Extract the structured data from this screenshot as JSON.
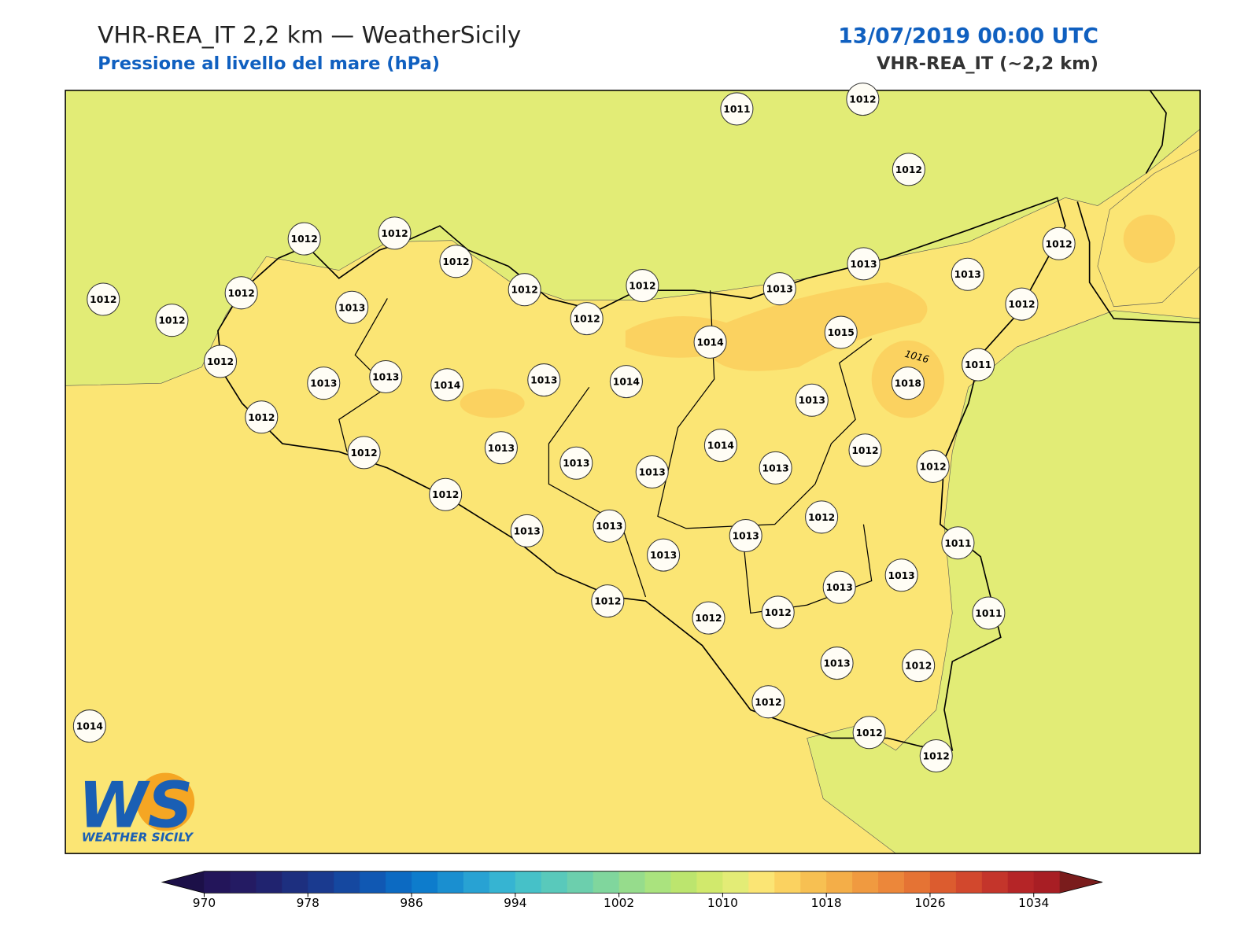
{
  "header": {
    "title": "VHR-REA_IT 2,2 km — WeatherSicily",
    "subtitle": "Pressione al livello del mare (hPa)",
    "date": "13/07/2019 00:00 UTC",
    "model": "VHR-REA_IT (~2,2 km)"
  },
  "map": {
    "stations": [
      1011,
      1012,
      1012,
      1012,
      1012,
      1012,
      1013,
      1012,
      1013,
      1012,
      1012,
      1012,
      1013,
      1012,
      1012,
      1013,
      1012,
      1012,
      1015,
      1014,
      1012,
      1011,
      1013,
      1013,
      1014,
      1013,
      1014,
      1018,
      1013,
      1012,
      1014,
      1012,
      1012,
      1012,
      1013,
      1013,
      1013,
      1013,
      1012,
      1012,
      1013,
      1013,
      1013,
      1011,
      1013,
      1013,
      1013,
      1011,
      1012,
      1012,
      1012,
      1013,
      1012,
      1012,
      1012,
      1012,
      1014
    ],
    "contour_label": "1016"
  },
  "colorbar": {
    "range": [
      970,
      1036
    ],
    "ticks": [
      970,
      978,
      986,
      994,
      1002,
      1010,
      1018,
      1026,
      1034
    ],
    "colors": [
      "#23155a",
      "#241b63",
      "#20236f",
      "#1d2f7f",
      "#1a3a8f",
      "#1548a0",
      "#1058b3",
      "#0c6ac2",
      "#0d7ccc",
      "#1a8fd0",
      "#28a2d3",
      "#36b4d2",
      "#46c1c8",
      "#59c9bb",
      "#6ccfad",
      "#80d69d",
      "#96dc8c",
      "#aae37e",
      "#bce56e",
      "#d1e96c",
      "#e3ec76",
      "#fbe574",
      "#fbd260",
      "#f7c052",
      "#f4ae48",
      "#f09a40",
      "#ec873a",
      "#e57334",
      "#dc5c2f",
      "#d2482d",
      "#c4352b",
      "#b52527",
      "#a81e24"
    ],
    "under_color": "#1c1048",
    "over_color": "#7a1c1c"
  },
  "logo": {
    "mark": "WS",
    "name": "WEATHER SICILY"
  }
}
